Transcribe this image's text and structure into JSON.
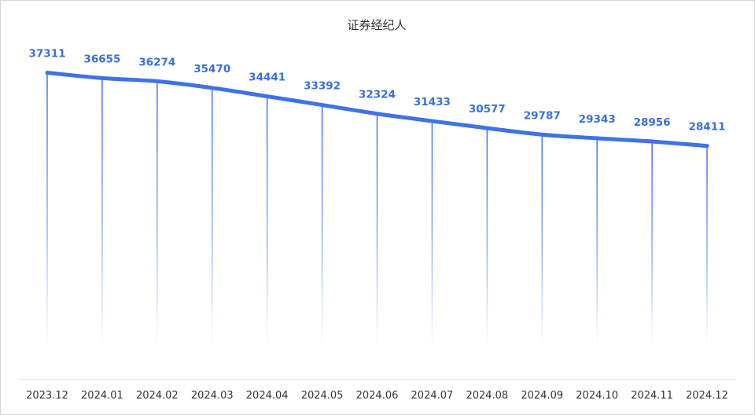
{
  "chart_data": {
    "type": "line",
    "title": "证券经纪人",
    "categories": [
      "2023.12",
      "2024.01",
      "2024.02",
      "2024.03",
      "2024.04",
      "2024.05",
      "2024.06",
      "2024.07",
      "2024.08",
      "2024.09",
      "2024.10",
      "2024.11",
      "2024.12"
    ],
    "series": [
      {
        "name": "证券经纪人",
        "values": [
          37311,
          36655,
          36274,
          35470,
          34441,
          33392,
          32324,
          31433,
          30577,
          29787,
          29343,
          28956,
          28411
        ]
      }
    ],
    "xlabel": "",
    "ylabel": "",
    "ylim": [
      0,
      43000
    ],
    "grid": false,
    "legend": "none",
    "drop_lines": true,
    "data_labels": true
  },
  "colors": {
    "line": "#3f72e6",
    "label": "#3a6fd8",
    "title": "#333333",
    "axis_text": "#333333",
    "baseline": "#dddddd",
    "border": "#d6d6d6"
  }
}
